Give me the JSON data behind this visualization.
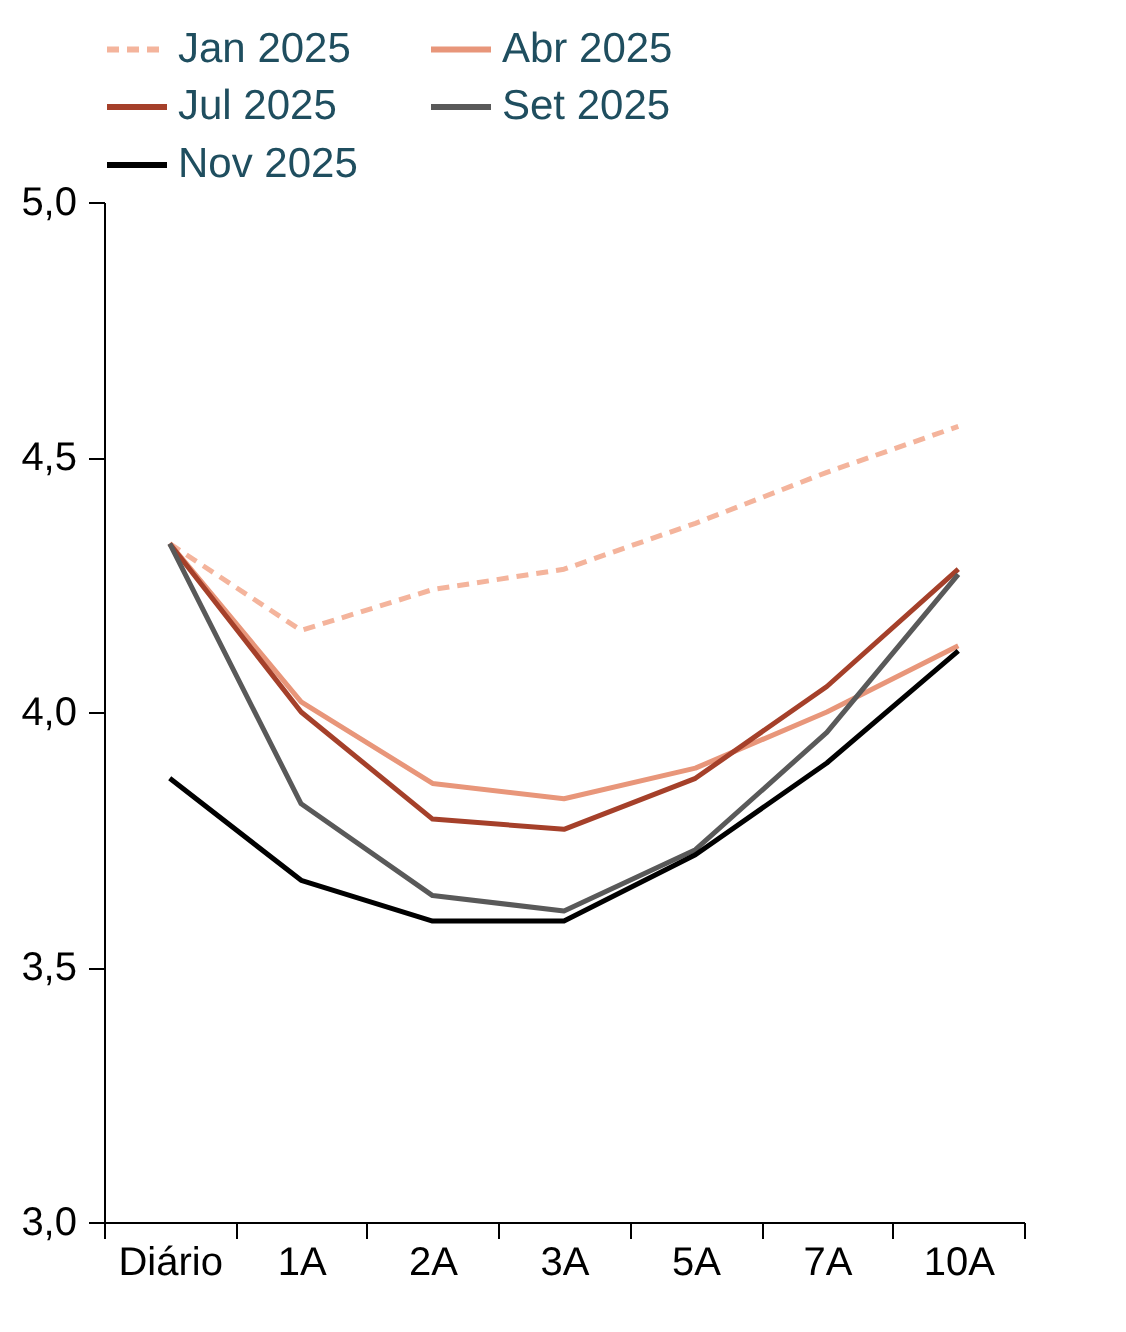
{
  "chart_data": {
    "type": "line",
    "categories": [
      "Diário",
      "1A",
      "2A",
      "3A",
      "5A",
      "7A",
      "10A"
    ],
    "series": [
      {
        "name": "Jan 2025",
        "color": "#f4b49c",
        "line_style": "dashed",
        "values": [
          4.33,
          4.16,
          4.24,
          4.28,
          4.37,
          4.47,
          4.56
        ]
      },
      {
        "name": "Abr 2025",
        "color": "#e8967a",
        "values": [
          4.33,
          4.02,
          3.86,
          3.83,
          3.89,
          4.0,
          4.13
        ]
      },
      {
        "name": "Jul 2025",
        "color": "#a5402a",
        "values": [
          4.33,
          4.0,
          3.79,
          3.77,
          3.87,
          4.05,
          4.28
        ]
      },
      {
        "name": "Set 2025",
        "color": "#595959",
        "values": [
          4.33,
          3.82,
          3.64,
          3.61,
          3.73,
          3.96,
          4.27
        ]
      },
      {
        "name": "Nov 2025",
        "color": "#000000",
        "values": [
          3.87,
          3.67,
          3.59,
          3.59,
          3.72,
          3.9,
          4.12
        ]
      }
    ],
    "ylim": [
      3.0,
      5.0
    ],
    "yticks": [
      {
        "value": 3.0,
        "label": "3,0"
      },
      {
        "value": 3.5,
        "label": "3,5"
      },
      {
        "value": 4.0,
        "label": "4,0"
      },
      {
        "value": 4.5,
        "label": "4,5"
      },
      {
        "value": 5.0,
        "label": "5,0"
      }
    ],
    "grid": false,
    "legend": "top",
    "line_style": "solid",
    "marker": "none"
  }
}
